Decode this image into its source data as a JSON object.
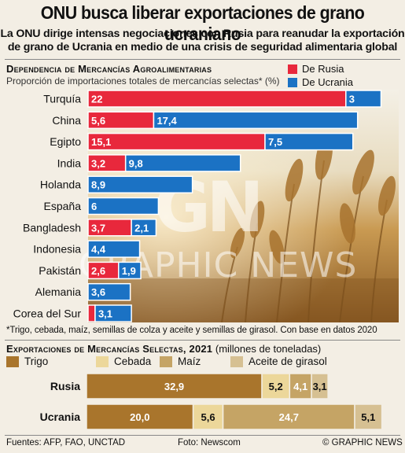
{
  "headline": "ONU busca liberar exportaciones de grano ucraniano",
  "subhead_line1": "La ONU dirige intensas negociaciones con Rusia para reanudar la exportación",
  "subhead_line2": "de grano de Ucrania en medio de una crisis de seguridad alimentaria global",
  "colors": {
    "russia": "#e8283c",
    "ukraine": "#1b72c4",
    "trigo": "#a9752c",
    "cebada": "#ecd79a",
    "maiz": "#c5a465",
    "aceite": "#d6c092"
  },
  "watermark": {
    "logo": "GN",
    "text": "GRAPHIC NEWS"
  },
  "chart_data": [
    {
      "type": "bar",
      "orientation": "horizontal",
      "stacked": true,
      "title": "Dependencia de Mercancías Agroalimentarias",
      "subtitle": "Proporción de importaciones totales de mercancías selectas* (%)",
      "legend": [
        "De Rusia",
        "De Ucrania"
      ],
      "legend_position": "top-right",
      "categories": [
        "Turquía",
        "China",
        "Egipto",
        "India",
        "Holanda",
        "España",
        "Bangladesh",
        "Indonesia",
        "Pakistán",
        "Alemania",
        "Corea del Sur"
      ],
      "series": [
        {
          "name": "De Rusia",
          "values": [
            22,
            5.6,
            15.1,
            3.2,
            null,
            null,
            3.7,
            null,
            2.6,
            null,
            0.6
          ]
        },
        {
          "name": "De Ucrania",
          "values": [
            3,
            17.4,
            7.5,
            9.8,
            8.9,
            6,
            2.1,
            4.4,
            1.9,
            3.6,
            3.1
          ]
        }
      ],
      "labels": {
        "De Rusia": [
          "22",
          "5,6",
          "15,1",
          "3,2",
          "",
          "",
          "3,7",
          "",
          "2,6",
          "",
          ""
        ],
        "De Ucrania": [
          "3",
          "17,4",
          "7,5",
          "9,8",
          "8,9",
          "6",
          "2,1",
          "4,4",
          "1,9",
          "3,6",
          "3,1"
        ]
      }
    },
    {
      "type": "bar",
      "orientation": "horizontal",
      "stacked": true,
      "title": "Exportaciones de Mercancías Selectas, 2021",
      "unit": "(millones de toneladas)",
      "legend": [
        "Trigo",
        "Cebada",
        "Maíz",
        "Aceite de girasol"
      ],
      "legend_position": "top",
      "categories": [
        "Rusia",
        "Ucrania"
      ],
      "series": [
        {
          "name": "Trigo",
          "values": [
            32.9,
            20.0
          ]
        },
        {
          "name": "Cebada",
          "values": [
            5.2,
            5.6
          ]
        },
        {
          "name": "Maíz",
          "values": [
            4.1,
            24.7
          ]
        },
        {
          "name": "Aceite de girasol",
          "values": [
            3.1,
            5.1
          ]
        }
      ],
      "labels": {
        "Trigo": [
          "32,9",
          "20,0"
        ],
        "Cebada": [
          "5,2",
          "5,6"
        ],
        "Maíz": [
          "4,1",
          "24,7"
        ],
        "Aceite de girasol": [
          "3,1",
          "5,1"
        ]
      }
    }
  ],
  "footnote": "*Trigo, cebada, maíz, semillas de colza y aceite y semillas de girasol. Con base en datos 2020",
  "footer": {
    "sources": "Fuentes: AFP, FAO, UNCTAD",
    "photo": "Foto: Newscom",
    "credit": "© GRAPHIC NEWS"
  }
}
